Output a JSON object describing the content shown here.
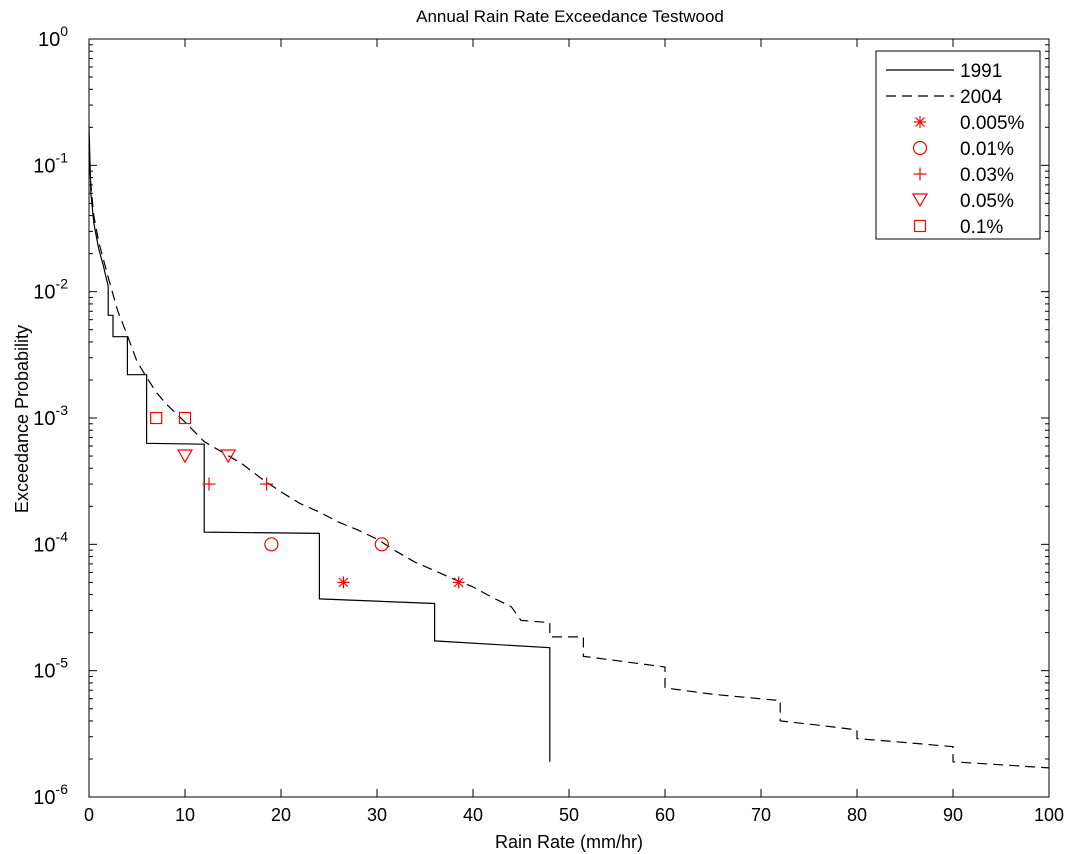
{
  "chart_data": {
    "type": "line",
    "title": "Annual Rain Rate Exceedance Testwood",
    "xlabel": "Rain Rate (mm/hr)",
    "ylabel": "Exceedance Probability",
    "xlim": [
      0,
      100
    ],
    "ylim": [
      1e-06,
      1
    ],
    "yscale": "log",
    "xticks": [
      "0",
      "10",
      "20",
      "30",
      "40",
      "50",
      "60",
      "70",
      "80",
      "90",
      "100"
    ],
    "yticks": [
      {
        "base": "10",
        "exp": "0"
      },
      {
        "base": "10",
        "exp": "-1"
      },
      {
        "base": "10",
        "exp": "-2"
      },
      {
        "base": "10",
        "exp": "-3"
      },
      {
        "base": "10",
        "exp": "-4"
      },
      {
        "base": "10",
        "exp": "-5"
      },
      {
        "base": "10",
        "exp": "-6"
      }
    ],
    "legend_position": "top-right",
    "series": [
      {
        "name": "1991",
        "style": "solid",
        "color": "#000000",
        "points": [
          [
            0,
            0.2
          ],
          [
            0.2,
            0.06
          ],
          [
            0.5,
            0.035
          ],
          [
            1,
            0.022
          ],
          [
            1.5,
            0.016
          ],
          [
            2,
            0.011
          ],
          [
            2,
            0.0065
          ],
          [
            2.5,
            0.0065
          ],
          [
            2.5,
            0.0044
          ],
          [
            4,
            0.0044
          ],
          [
            4,
            0.0022
          ],
          [
            6,
            0.0022
          ],
          [
            6,
            0.00063
          ],
          [
            12,
            0.00062
          ],
          [
            12,
            0.000125
          ],
          [
            24,
            0.000122
          ],
          [
            24,
            3.7e-05
          ],
          [
            36,
            3.4e-05
          ],
          [
            36,
            1.72e-05
          ],
          [
            48,
            1.52e-05
          ],
          [
            48,
            1.9e-06
          ]
        ]
      },
      {
        "name": "2004",
        "style": "dashed",
        "color": "#000000",
        "points": [
          [
            0,
            0.1
          ],
          [
            0.5,
            0.04
          ],
          [
            1,
            0.025
          ],
          [
            2,
            0.013
          ],
          [
            3,
            0.007
          ],
          [
            4,
            0.0045
          ],
          [
            5,
            0.0028
          ],
          [
            6,
            0.0021
          ],
          [
            7,
            0.0016
          ],
          [
            8,
            0.0013
          ],
          [
            10,
            0.00093
          ],
          [
            12,
            0.00065
          ],
          [
            14,
            0.00053
          ],
          [
            16,
            0.00043
          ],
          [
            18,
            0.00033
          ],
          [
            20,
            0.00026
          ],
          [
            22,
            0.00021
          ],
          [
            24,
            0.00018
          ],
          [
            26,
            0.00015
          ],
          [
            28,
            0.00013
          ],
          [
            30,
            0.00011
          ],
          [
            32,
            8.8e-05
          ],
          [
            34,
            7.2e-05
          ],
          [
            36,
            6.2e-05
          ],
          [
            38,
            5.3e-05
          ],
          [
            40,
            4.6e-05
          ],
          [
            42,
            3.8e-05
          ],
          [
            44,
            3.2e-05
          ],
          [
            45,
            2.5e-05
          ],
          [
            48,
            2.4e-05
          ],
          [
            48,
            1.85e-05
          ],
          [
            51.5,
            1.85e-05
          ],
          [
            51.5,
            1.3e-05
          ],
          [
            55,
            1.2e-05
          ],
          [
            60,
            1.07e-05
          ],
          [
            60,
            7.3e-06
          ],
          [
            65,
            6.5e-06
          ],
          [
            72,
            5.8e-06
          ],
          [
            72,
            4e-06
          ],
          [
            76,
            3.7e-06
          ],
          [
            80,
            3.4e-06
          ],
          [
            80,
            2.9e-06
          ],
          [
            85,
            2.7e-06
          ],
          [
            90,
            2.5e-06
          ],
          [
            90,
            1.9e-06
          ],
          [
            95,
            1.8e-06
          ],
          [
            100,
            1.7e-06
          ]
        ]
      }
    ],
    "markers": [
      {
        "name": "0.005%",
        "symbol": "asterisk",
        "color": "#ff0000",
        "points": [
          [
            26.5,
            5e-05
          ],
          [
            38.5,
            5e-05
          ]
        ]
      },
      {
        "name": "0.01%",
        "symbol": "circle",
        "color": "#ff0000",
        "points": [
          [
            19,
            0.0001
          ],
          [
            30.5,
            0.0001
          ]
        ]
      },
      {
        "name": "0.03%",
        "symbol": "plus",
        "color": "#ff0000",
        "points": [
          [
            12.5,
            0.0003
          ],
          [
            18.5,
            0.0003
          ]
        ]
      },
      {
        "name": "0.05%",
        "symbol": "triangle-down",
        "color": "#ff0000",
        "points": [
          [
            10,
            0.0005
          ],
          [
            14.5,
            0.0005
          ]
        ]
      },
      {
        "name": "0.1%",
        "symbol": "square",
        "color": "#ff0000",
        "points": [
          [
            7,
            0.001
          ],
          [
            10,
            0.001
          ]
        ]
      }
    ]
  }
}
